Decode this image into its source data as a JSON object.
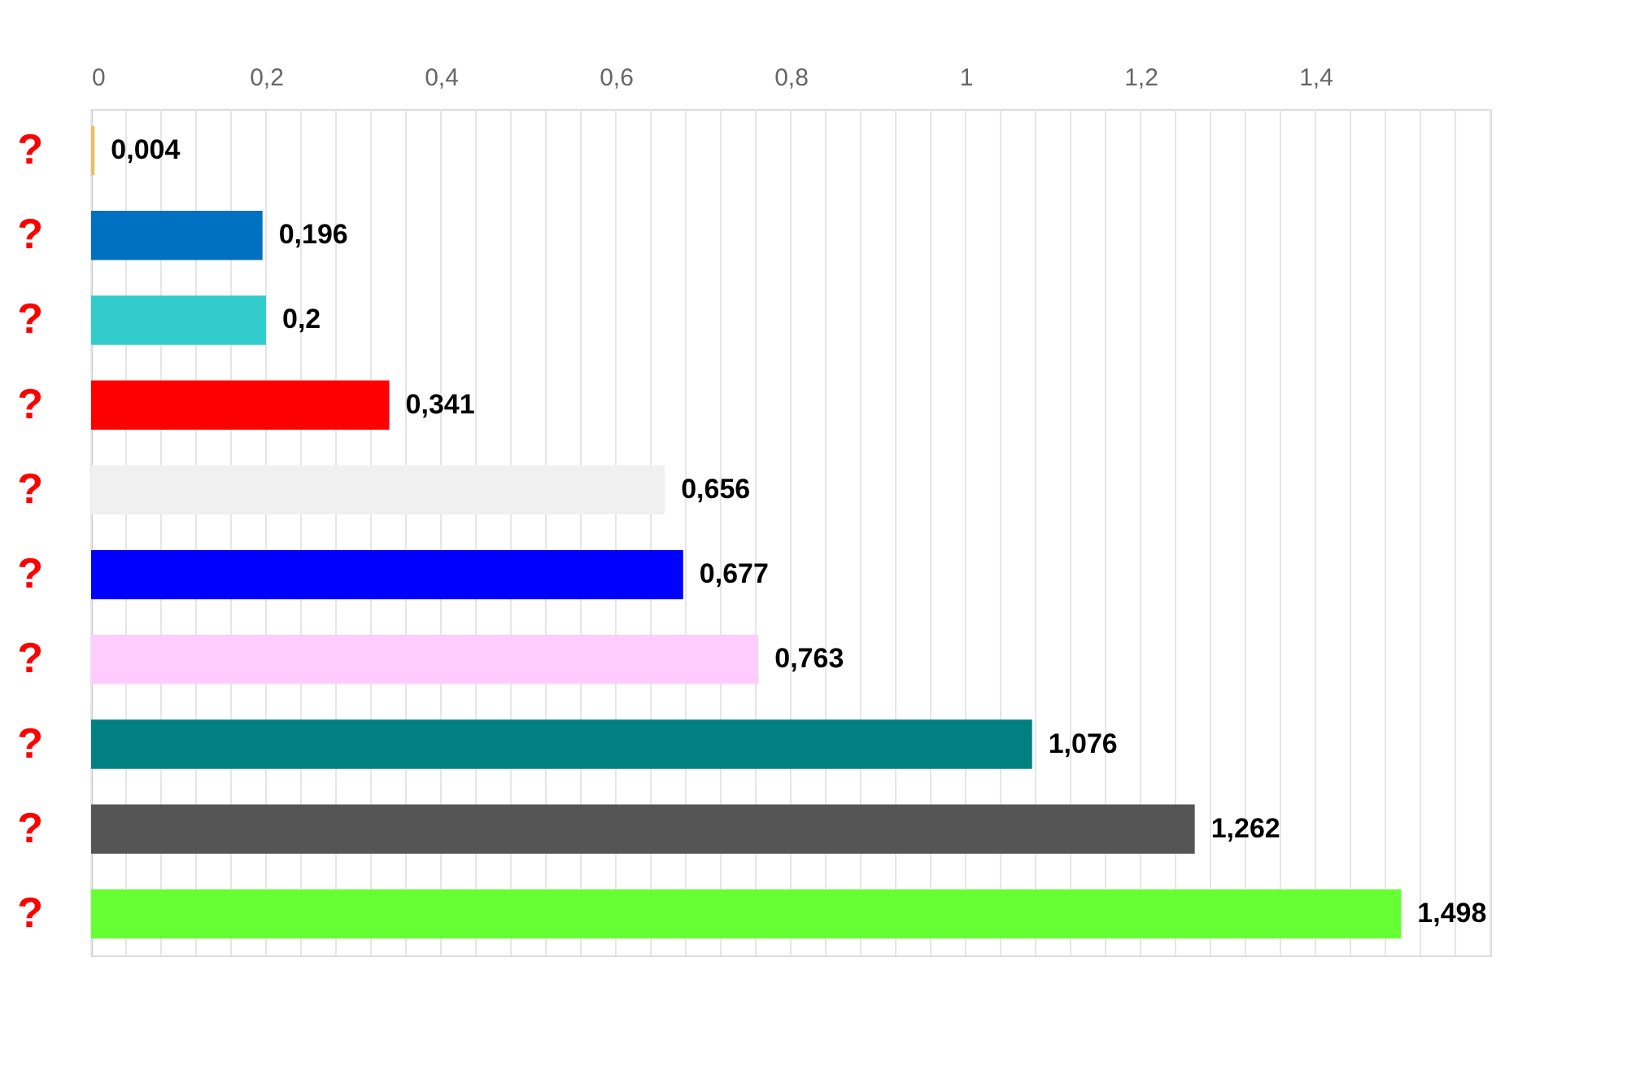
{
  "chart_data": {
    "type": "bar",
    "orientation": "horizontal",
    "categories": [
      "?",
      "?",
      "?",
      "?",
      "?",
      "?",
      "?",
      "?",
      "?",
      "?"
    ],
    "values": [
      0.004,
      0.196,
      0.2,
      0.341,
      0.656,
      0.677,
      0.763,
      1.076,
      1.262,
      1.498
    ],
    "colors": [
      "#e8c060",
      "#0070c0",
      "#33cccc",
      "#ff0000",
      "#f0f0f0",
      "#0000ff",
      "#ffccff",
      "#008080",
      "#555555",
      "#66ff33"
    ],
    "value_labels": [
      "0,004",
      "0,196",
      "0,2",
      "0,341",
      "0,656",
      "0,677",
      "0,763",
      "1,076",
      "1,262",
      "1,498"
    ],
    "xlim": [
      0,
      1.6
    ],
    "xticks": [
      {
        "value": 0,
        "label": "0"
      },
      {
        "value": 0.04,
        "label": null
      },
      {
        "value": 0.08,
        "label": null
      },
      {
        "value": 0.12,
        "label": null
      },
      {
        "value": 0.16,
        "label": null
      },
      {
        "value": 0.2,
        "label": "0,2"
      },
      {
        "value": 0.24,
        "label": null
      },
      {
        "value": 0.28,
        "label": null
      },
      {
        "value": 0.32,
        "label": null
      },
      {
        "value": 0.36,
        "label": null
      },
      {
        "value": 0.4,
        "label": "0,4"
      },
      {
        "value": 0.44,
        "label": null
      },
      {
        "value": 0.48,
        "label": null
      },
      {
        "value": 0.52,
        "label": null
      },
      {
        "value": 0.56,
        "label": null
      },
      {
        "value": 0.6,
        "label": "0,6"
      },
      {
        "value": 0.64,
        "label": null
      },
      {
        "value": 0.68,
        "label": null
      },
      {
        "value": 0.72,
        "label": null
      },
      {
        "value": 0.76,
        "label": null
      },
      {
        "value": 0.8,
        "label": "0,8"
      },
      {
        "value": 0.84,
        "label": null
      },
      {
        "value": 0.88,
        "label": null
      },
      {
        "value": 0.92,
        "label": null
      },
      {
        "value": 0.96,
        "label": null
      },
      {
        "value": 1,
        "label": "1"
      },
      {
        "value": 1.04,
        "label": null
      },
      {
        "value": 1.08,
        "label": null
      },
      {
        "value": 1.12,
        "label": null
      },
      {
        "value": 1.16,
        "label": null
      },
      {
        "value": 1.2,
        "label": "1,2"
      },
      {
        "value": 1.24,
        "label": null
      },
      {
        "value": 1.28,
        "label": null
      },
      {
        "value": 1.32,
        "label": null
      },
      {
        "value": 1.36,
        "label": null
      },
      {
        "value": 1.4,
        "label": "1,4"
      },
      {
        "value": 1.44,
        "label": null
      },
      {
        "value": 1.48,
        "label": null
      },
      {
        "value": 1.52,
        "label": null
      },
      {
        "value": 1.56,
        "label": null
      },
      {
        "value": 1.6,
        "label": null
      }
    ],
    "grid": "x"
  }
}
